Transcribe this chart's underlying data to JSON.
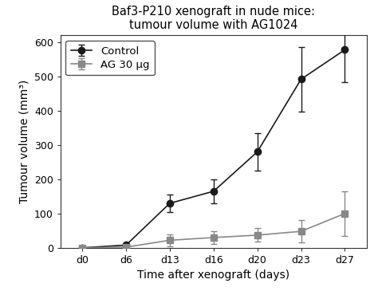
{
  "title_line1": "Baf3-P210 xenograft in nude mice:",
  "title_line2": "tumour volume with AG1024",
  "xlabel": "Time after xenograft (days)",
  "ylabel": "Tumour volume (mm³)",
  "x_labels": [
    "d0",
    "d6",
    "d13",
    "d16",
    "d20",
    "d23",
    "d27"
  ],
  "x_values": [
    0,
    6,
    13,
    16,
    20,
    23,
    27
  ],
  "control_y": [
    0,
    8,
    130,
    165,
    280,
    492,
    578
  ],
  "control_yerr": [
    2,
    5,
    25,
    35,
    55,
    95,
    95
  ],
  "ag30_y": [
    0,
    2,
    22,
    30,
    37,
    48,
    100
  ],
  "ag30_yerr": [
    1,
    3,
    18,
    18,
    20,
    32,
    65
  ],
  "control_color": "#1a1a1a",
  "ag30_color": "#888888",
  "ylim": [
    0,
    620
  ],
  "yticks": [
    0,
    100,
    200,
    300,
    400,
    500,
    600
  ],
  "legend_control": "Control",
  "legend_ag30": "AG 30 μg",
  "title_fontsize": 10.5,
  "label_fontsize": 10,
  "tick_fontsize": 9,
  "legend_fontsize": 9.5,
  "bg_color": "#ffffff"
}
